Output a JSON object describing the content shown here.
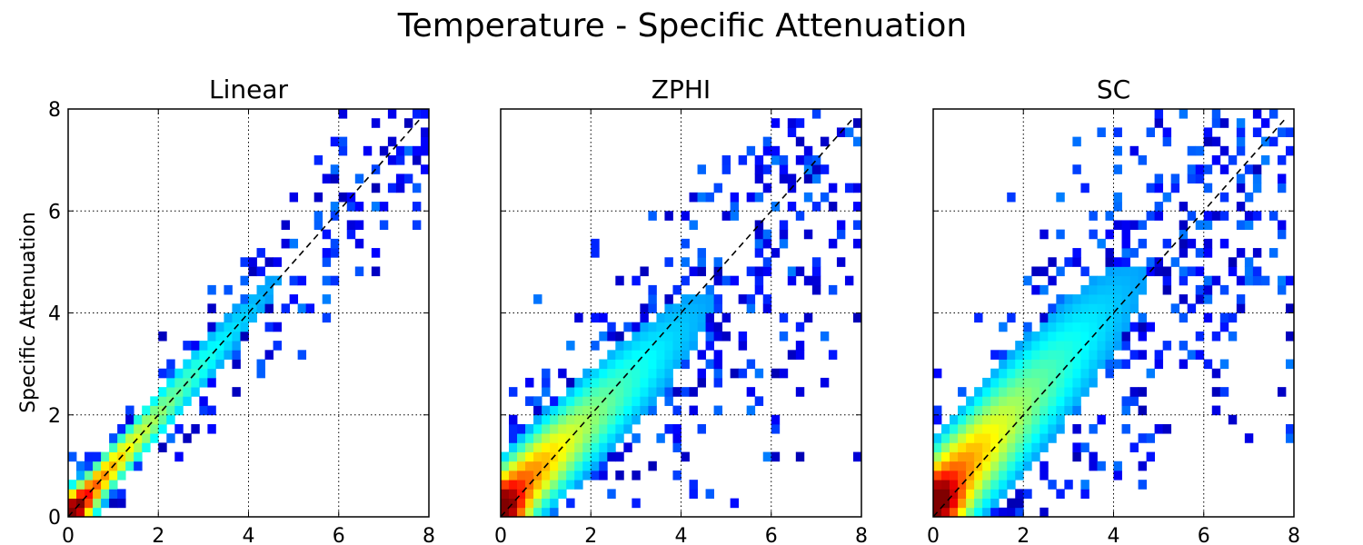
{
  "figure": {
    "title": "Temperature - Specific Attenuation",
    "ylabel": "Specific Attenuation"
  },
  "colormap": "jet",
  "chart_data": [
    {
      "type": "heatmap",
      "title": "Linear",
      "xlabel": "",
      "ylabel": "Specific Attenuation",
      "xlim": [
        0,
        8
      ],
      "ylim": [
        0,
        8
      ],
      "xticks": [
        "0",
        "2",
        "4",
        "6",
        "8"
      ],
      "yticks": [
        "0",
        "2",
        "4",
        "6",
        "8"
      ],
      "grid": true,
      "reference_line": {
        "style": "dashed",
        "from": [
          0,
          0
        ],
        "to": [
          7.8,
          7.8
        ]
      },
      "distribution": {
        "slope": 1.0,
        "intercept": 0.0,
        "spread": 0.35,
        "extent": [
          0,
          8
        ],
        "peak_at": [
          0.1,
          0.1
        ]
      }
    },
    {
      "type": "heatmap",
      "title": "ZPHI",
      "xlabel": "",
      "ylabel": "",
      "xlim": [
        0,
        8
      ],
      "ylim": [
        0,
        8
      ],
      "xticks": [
        "0",
        "2",
        "4",
        "6",
        "8"
      ],
      "yticks": [],
      "grid": true,
      "reference_line": {
        "style": "dashed",
        "from": [
          0,
          0
        ],
        "to": [
          7.8,
          7.8
        ]
      },
      "distribution": {
        "slope": 0.85,
        "intercept": 0.2,
        "spread": 0.7,
        "extent": [
          0,
          8
        ],
        "peak_at": [
          0.1,
          0.1
        ]
      }
    },
    {
      "type": "heatmap",
      "title": "SC",
      "xlabel": "",
      "ylabel": "",
      "xlim": [
        0,
        8
      ],
      "ylim": [
        0,
        8
      ],
      "xticks": [
        "0",
        "2",
        "4",
        "6",
        "8"
      ],
      "yticks": [],
      "grid": true,
      "reference_line": {
        "style": "dashed",
        "from": [
          0,
          0
        ],
        "to": [
          7.8,
          7.8
        ]
      },
      "distribution": {
        "slope": 0.95,
        "intercept": 0.25,
        "spread": 0.9,
        "extent": [
          0,
          8
        ],
        "peak_at": [
          0.2,
          0.3
        ]
      }
    }
  ]
}
